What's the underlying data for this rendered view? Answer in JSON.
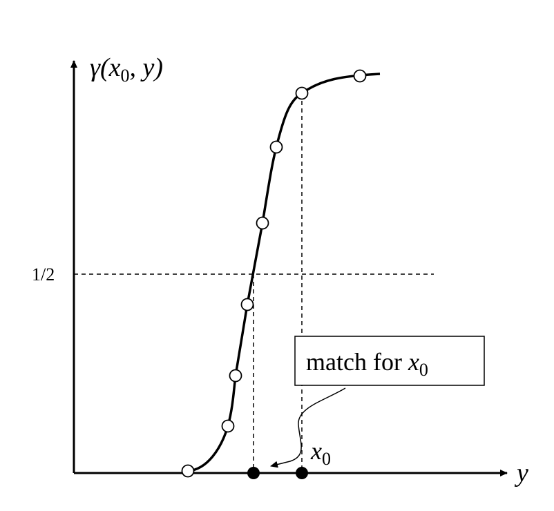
{
  "y_axis_label": {
    "pre": "γ(x",
    "sub": "0",
    "post": ", y)"
  },
  "x_axis_label": "y",
  "half_label": "1/2",
  "callout": {
    "text": "match for ",
    "var": "x",
    "sub": "0"
  },
  "marker_label": {
    "var": "x",
    "sub": "0"
  }
}
